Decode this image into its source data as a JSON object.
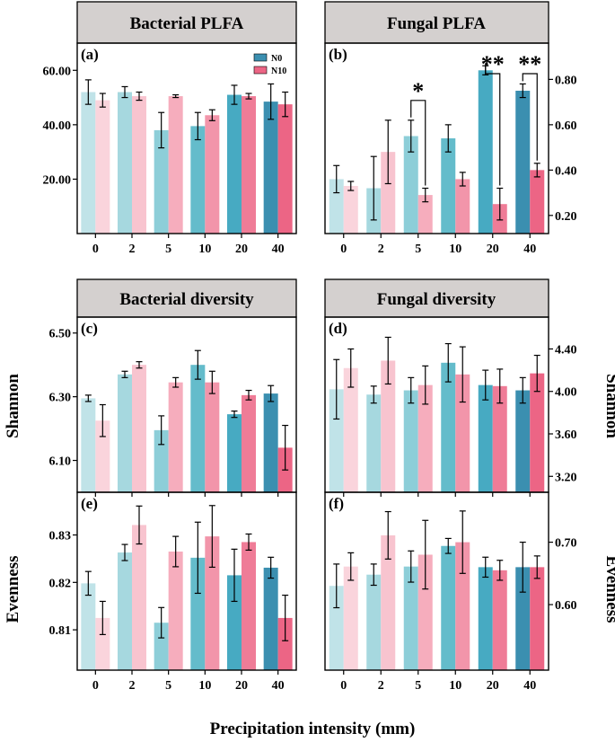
{
  "colors": {
    "n0": [
      "#c0e3e8",
      "#a6d8df",
      "#8dced8",
      "#64bccb",
      "#47aac2",
      "#3b8fb0"
    ],
    "n10": [
      "#fad4dc",
      "#f8c4cf",
      "#f6adbd",
      "#f295aa",
      "#ef7c97",
      "#ec6585"
    ],
    "banner": "#d4d0cf",
    "legend_n0": "#3b8fb0",
    "legend_n10": "#ec6585"
  },
  "x_title": "Precipitation intensity (mm)",
  "legend": [
    "N0",
    "N10"
  ],
  "chart_data": [
    {
      "id": "a",
      "label": "(a)",
      "title": "Bacterial PLFA",
      "type": "bar",
      "categories": [
        "0",
        "2",
        "5",
        "10",
        "20",
        "40"
      ],
      "series": [
        {
          "name": "N0",
          "values": [
            52,
            52,
            38,
            39.5,
            51,
            48.5
          ],
          "errors": [
            4.5,
            2,
            6.5,
            5,
            3.5,
            6.5
          ]
        },
        {
          "name": "N10",
          "values": [
            49,
            50.5,
            50.5,
            43.5,
            50.5,
            47.5
          ],
          "errors": [
            2.5,
            1.5,
            0.5,
            2,
            1,
            4.5
          ]
        }
      ],
      "ylim": [
        0,
        70
      ],
      "yticks": [
        "20.00",
        "40.00",
        "60.00"
      ],
      "ytick_values": [
        20,
        40,
        60
      ],
      "yaxis": "left",
      "ylabel": "",
      "xticks_visible": true,
      "significance": []
    },
    {
      "id": "b",
      "label": "(b)",
      "title": "Fungal PLFA",
      "type": "bar",
      "categories": [
        "0",
        "2",
        "5",
        "10",
        "20",
        "40"
      ],
      "series": [
        {
          "name": "N0",
          "values": [
            0.36,
            0.32,
            0.55,
            0.54,
            0.84,
            0.75
          ],
          "errors": [
            0.06,
            0.14,
            0.07,
            0.06,
            0.02,
            0.03
          ]
        },
        {
          "name": "N10",
          "values": [
            0.33,
            0.48,
            0.29,
            0.36,
            0.25,
            0.4
          ],
          "errors": [
            0.02,
            0.14,
            0.03,
            0.03,
            0.07,
            0.03
          ]
        }
      ],
      "ylim": [
        0.12,
        0.96
      ],
      "yticks": [
        "0.20",
        "0.40",
        "0.60",
        "0.80"
      ],
      "ytick_values": [
        0.2,
        0.4,
        0.6,
        0.8
      ],
      "yaxis": "right",
      "ylabel": "",
      "xticks_visible": true,
      "significance": [
        {
          "category_index": 2,
          "text": "*"
        },
        {
          "category_index": 4,
          "text": "**"
        },
        {
          "category_index": 5,
          "text": "**"
        }
      ]
    },
    {
      "id": "c",
      "label": "(c)",
      "title": "Bacterial diversity",
      "type": "bar",
      "categories": [
        "0",
        "2",
        "5",
        "10",
        "20",
        "40"
      ],
      "series": [
        {
          "name": "N0",
          "values": [
            6.295,
            6.37,
            6.195,
            6.4,
            6.245,
            6.31
          ],
          "errors": [
            0.01,
            0.01,
            0.045,
            0.045,
            0.01,
            0.025
          ]
        },
        {
          "name": "N10",
          "values": [
            6.225,
            6.4,
            6.345,
            6.345,
            6.305,
            6.14
          ],
          "errors": [
            0.05,
            0.01,
            0.015,
            0.035,
            0.015,
            0.07
          ]
        }
      ],
      "ylim": [
        6.0,
        6.55
      ],
      "yticks": [
        "6.10",
        "6.30",
        "6.50"
      ],
      "ytick_values": [
        6.1,
        6.3,
        6.5
      ],
      "yaxis": "left",
      "ylabel": "Shannon",
      "xticks_visible": false,
      "significance": []
    },
    {
      "id": "d",
      "label": "(d)",
      "title": "Fungal diversity",
      "type": "bar",
      "categories": [
        "0",
        "2",
        "5",
        "10",
        "20",
        "40"
      ],
      "series": [
        {
          "name": "N0",
          "values": [
            4.02,
            3.97,
            4.01,
            4.27,
            4.06,
            4.01
          ],
          "errors": [
            0.28,
            0.08,
            0.12,
            0.18,
            0.14,
            0.12
          ]
        },
        {
          "name": "N10",
          "values": [
            4.22,
            4.29,
            4.06,
            4.16,
            4.05,
            4.17
          ],
          "errors": [
            0.18,
            0.22,
            0.18,
            0.26,
            0.16,
            0.17
          ]
        }
      ],
      "ylim": [
        3.05,
        4.7
      ],
      "yticks": [
        "3.20",
        "3.60",
        "4.00",
        "4.40"
      ],
      "ytick_values": [
        3.2,
        3.6,
        4.0,
        4.4
      ],
      "yaxis": "right",
      "ylabel": "Shannon",
      "xticks_visible": false,
      "significance": []
    },
    {
      "id": "e",
      "label": "(e)",
      "title": "",
      "type": "bar",
      "categories": [
        "0",
        "2",
        "5",
        "10",
        "20",
        "40"
      ],
      "series": [
        {
          "name": "N0",
          "values": [
            0.8198,
            0.8263,
            0.8115,
            0.8252,
            0.8215,
            0.8231
          ],
          "errors": [
            0.0025,
            0.0017,
            0.0032,
            0.0075,
            0.0055,
            0.0022
          ]
        },
        {
          "name": "N10",
          "values": [
            0.8125,
            0.8321,
            0.8265,
            0.8297,
            0.8285,
            0.8125
          ],
          "errors": [
            0.0035,
            0.004,
            0.0032,
            0.0065,
            0.0017,
            0.0048
          ]
        }
      ],
      "ylim": [
        0.8015,
        0.839
      ],
      "yticks": [
        "0.81",
        "0.82",
        "0.83"
      ],
      "ytick_values": [
        0.81,
        0.82,
        0.83
      ],
      "yaxis": "left",
      "ylabel": "Evenness",
      "xticks_visible": true,
      "significance": []
    },
    {
      "id": "f",
      "label": "(f)",
      "title": "",
      "type": "bar",
      "categories": [
        "0",
        "2",
        "5",
        "10",
        "20",
        "40"
      ],
      "series": [
        {
          "name": "N0",
          "values": [
            0.63,
            0.648,
            0.661,
            0.694,
            0.66,
            0.66
          ],
          "errors": [
            0.035,
            0.017,
            0.025,
            0.012,
            0.016,
            0.04
          ]
        },
        {
          "name": "N10",
          "values": [
            0.661,
            0.711,
            0.68,
            0.7,
            0.655,
            0.66
          ],
          "errors": [
            0.022,
            0.038,
            0.055,
            0.05,
            0.016,
            0.018
          ]
        }
      ],
      "ylim": [
        0.495,
        0.78
      ],
      "yticks": [
        "0.60",
        "0.70"
      ],
      "ytick_values": [
        0.6,
        0.7
      ],
      "yaxis": "right",
      "ylabel": "Evenness",
      "xticks_visible": true,
      "significance": []
    }
  ]
}
